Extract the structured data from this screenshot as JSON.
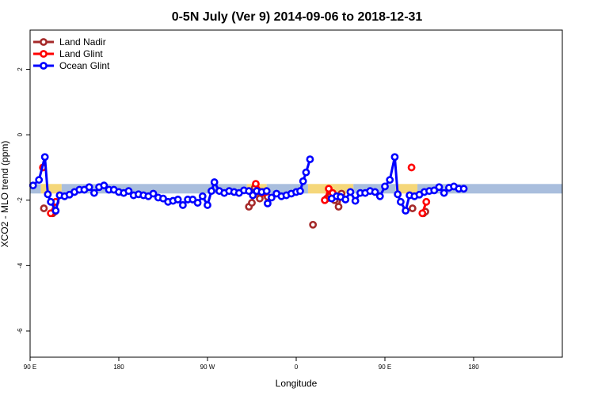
{
  "chart_data": {
    "type": "line",
    "title": "0-5N July (Ver 9)   2014-09-06 to 2018-12-31",
    "xlabel": "Longitude",
    "ylabel": "XCO2 - MLO trend (ppm)",
    "x_axis": {
      "range": [
        90,
        630
      ],
      "ticks": [
        {
          "value": 90,
          "label": "90 E"
        },
        {
          "value": 180,
          "label": "180"
        },
        {
          "value": 270,
          "label": "90 W"
        },
        {
          "value": 360,
          "label": "0"
        },
        {
          "value": 450,
          "label": "90 E"
        },
        {
          "value": 540,
          "label": "180"
        }
      ]
    },
    "y_axis": {
      "range": [
        -6.8,
        3.2
      ],
      "ticks": [
        {
          "value": 2,
          "label": "2"
        },
        {
          "value": 0,
          "label": "0"
        },
        {
          "value": -2,
          "label": "-2"
        },
        {
          "value": -4,
          "label": "-4"
        },
        {
          "value": -6,
          "label": "-6"
        }
      ]
    },
    "grid": false,
    "legend_position": "top-left",
    "colors": {
      "land_nadir": "#a52a2a",
      "land_glint": "#ff0000",
      "ocean_glint": "#0000ff",
      "band_ocean": "#a9bedd",
      "band_land": "#f5d77a"
    },
    "background_band": {
      "y": -1.65,
      "segments": [
        {
          "x": [
            90,
            101
          ],
          "kind": "ocean"
        },
        {
          "x": [
            101,
            122
          ],
          "kind": "land"
        },
        {
          "x": [
            122,
            310
          ],
          "kind": "ocean"
        },
        {
          "x": [
            310,
            330
          ],
          "kind": "land"
        },
        {
          "x": [
            330,
            372
          ],
          "kind": "ocean"
        },
        {
          "x": [
            372,
            418
          ],
          "kind": "land"
        },
        {
          "x": [
            418,
            461
          ],
          "kind": "ocean"
        },
        {
          "x": [
            461,
            483
          ],
          "kind": "land"
        },
        {
          "x": [
            483,
            630
          ],
          "kind": "ocean"
        }
      ]
    },
    "series": [
      {
        "name": "Land Nadir",
        "color": "#a52a2a",
        "segments": [
          [
            [
              104,
              -2.25
            ]
          ],
          [
            [
              113,
              -2.4
            ],
            [
              115,
              -2.35
            ]
          ],
          [
            [
              312,
              -2.2
            ],
            [
              315,
              -2.08
            ],
            [
              318,
              -1.62
            ],
            [
              323,
              -1.95
            ],
            [
              326,
              -1.75
            ],
            [
              331,
              -1.9
            ]
          ],
          [
            [
              377,
              -2.75
            ]
          ],
          [
            [
              391,
              -1.95
            ],
            [
              395,
              -1.85
            ],
            [
              399,
              -2.0
            ],
            [
              403,
              -2.2
            ],
            [
              406,
              -1.8
            ]
          ],
          [
            [
              478,
              -2.25
            ]
          ],
          [
            [
              489,
              -2.4
            ],
            [
              491,
              -2.35
            ]
          ]
        ]
      },
      {
        "name": "Land Glint",
        "color": "#ff0000",
        "segments": [
          [
            [
              103,
              -1.0
            ]
          ],
          [
            [
              111,
              -2.4
            ],
            [
              116,
              -2.05
            ]
          ],
          [
            [
              319,
              -1.5
            ],
            [
              326,
              -1.78
            ],
            [
              329,
              -1.75
            ]
          ],
          [
            [
              389,
              -2.0
            ],
            [
              393,
              -1.65
            ],
            [
              397,
              -1.78
            ]
          ],
          [
            [
              477,
              -1.0
            ]
          ],
          [
            [
              488,
              -2.4
            ],
            [
              492,
              -2.05
            ]
          ]
        ]
      },
      {
        "name": "Ocean Glint",
        "color": "#0000ff",
        "segments": [
          [
            [
              93,
              -1.55
            ],
            [
              99,
              -1.38
            ],
            [
              105,
              -0.68
            ],
            [
              108,
              -1.82
            ],
            [
              111,
              -2.05
            ],
            [
              116,
              -2.32
            ],
            [
              120,
              -1.85
            ],
            [
              125,
              -1.88
            ],
            [
              130,
              -1.83
            ],
            [
              135,
              -1.75
            ],
            [
              140,
              -1.68
            ],
            [
              145,
              -1.68
            ],
            [
              150,
              -1.6
            ],
            [
              155,
              -1.78
            ],
            [
              160,
              -1.6
            ],
            [
              165,
              -1.55
            ],
            [
              170,
              -1.68
            ],
            [
              175,
              -1.68
            ],
            [
              180,
              -1.75
            ],
            [
              185,
              -1.78
            ],
            [
              190,
              -1.72
            ],
            [
              195,
              -1.85
            ],
            [
              200,
              -1.82
            ],
            [
              205,
              -1.85
            ],
            [
              210,
              -1.88
            ],
            [
              215,
              -1.8
            ],
            [
              220,
              -1.92
            ],
            [
              225,
              -1.95
            ],
            [
              230,
              -2.05
            ],
            [
              235,
              -2.02
            ],
            [
              240,
              -1.98
            ],
            [
              245,
              -2.15
            ],
            [
              250,
              -1.98
            ],
            [
              255,
              -1.98
            ],
            [
              260,
              -2.08
            ],
            [
              265,
              -1.88
            ],
            [
              270,
              -2.15
            ],
            [
              274,
              -1.72
            ],
            [
              277,
              -1.45
            ],
            [
              282,
              -1.72
            ],
            [
              287,
              -1.78
            ],
            [
              292,
              -1.72
            ],
            [
              297,
              -1.75
            ],
            [
              302,
              -1.78
            ],
            [
              307,
              -1.7
            ],
            [
              312,
              -1.72
            ],
            [
              316,
              -1.85
            ],
            [
              320,
              -1.72
            ],
            [
              325,
              -1.75
            ],
            [
              330,
              -1.72
            ]
          ],
          [
            [
              331,
              -2.1
            ],
            [
              335,
              -1.92
            ],
            [
              340,
              -1.8
            ],
            [
              345,
              -1.88
            ],
            [
              350,
              -1.85
            ],
            [
              355,
              -1.8
            ],
            [
              360,
              -1.75
            ],
            [
              364,
              -1.72
            ],
            [
              367,
              -1.42
            ],
            [
              370,
              -1.15
            ],
            [
              374,
              -0.75
            ]
          ],
          [
            [
              396,
              -1.95
            ],
            [
              401,
              -1.88
            ],
            [
              405,
              -1.9
            ],
            [
              410,
              -1.98
            ],
            [
              415,
              -1.75
            ],
            [
              420,
              -2.02
            ],
            [
              425,
              -1.78
            ],
            [
              430,
              -1.78
            ],
            [
              435,
              -1.72
            ],
            [
              440,
              -1.75
            ],
            [
              445,
              -1.88
            ],
            [
              450,
              -1.58
            ],
            [
              455,
              -1.38
            ],
            [
              460,
              -0.68
            ],
            [
              463,
              -1.82
            ],
            [
              466,
              -2.05
            ],
            [
              471,
              -2.32
            ],
            [
              475,
              -1.85
            ],
            [
              480,
              -1.88
            ],
            [
              485,
              -1.83
            ],
            [
              490,
              -1.75
            ],
            [
              495,
              -1.72
            ],
            [
              500,
              -1.7
            ],
            [
              505,
              -1.6
            ],
            [
              510,
              -1.78
            ],
            [
              515,
              -1.62
            ],
            [
              520,
              -1.58
            ],
            [
              525,
              -1.65
            ],
            [
              530,
              -1.65
            ]
          ]
        ]
      }
    ]
  }
}
